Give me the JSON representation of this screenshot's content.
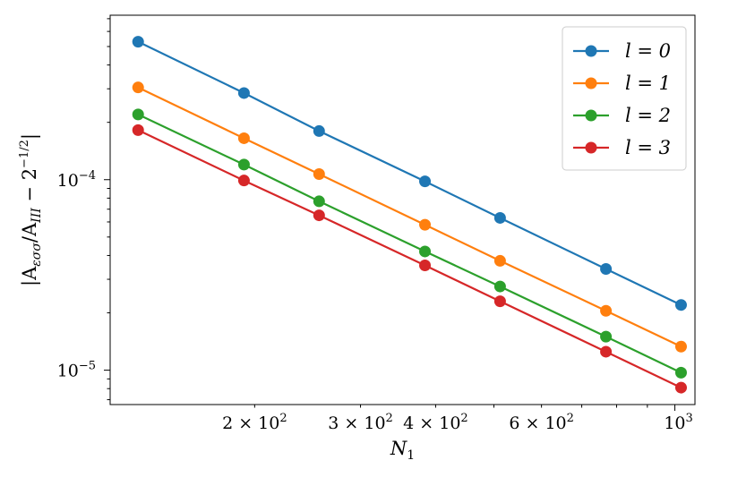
{
  "chart_data": {
    "type": "line",
    "xscale": "log",
    "yscale": "log",
    "xlabel": "N_1",
    "ylabel": "|A_{εσσ}/A_{III} − 2^{−1/2}|",
    "xlim": [
      115,
      1080
    ],
    "ylim": [
      6.6e-06,
      0.00073
    ],
    "x": [
      128,
      192,
      256,
      384,
      512,
      768,
      1024
    ],
    "series": [
      {
        "name": "l = 0",
        "color": "#1f77b4",
        "values": [
          0.00053,
          0.000285,
          0.00018,
          9.8e-05,
          6.3e-05,
          3.4e-05,
          2.2e-05
        ]
      },
      {
        "name": "l = 1",
        "color": "#ff7f0e",
        "values": [
          0.000305,
          0.000165,
          0.000107,
          5.8e-05,
          3.75e-05,
          2.05e-05,
          1.33e-05
        ]
      },
      {
        "name": "l = 2",
        "color": "#2ca02c",
        "values": [
          0.00022,
          0.00012,
          7.7e-05,
          4.2e-05,
          2.75e-05,
          1.5e-05,
          9.7e-06
        ]
      },
      {
        "name": "l = 3",
        "color": "#d62728",
        "values": [
          0.000182,
          9.9e-05,
          6.5e-05,
          3.55e-05,
          2.3e-05,
          1.25e-05,
          8.1e-06
        ]
      }
    ],
    "xticks_major": [
      {
        "value": 1000,
        "base": "10",
        "exp": "3"
      }
    ],
    "xticks_minor": [
      {
        "value": 200,
        "mant": "2",
        "base": "10",
        "exp": "2"
      },
      {
        "value": 300,
        "mant": "3",
        "base": "10",
        "exp": "2"
      },
      {
        "value": 400,
        "mant": "4",
        "base": "10",
        "exp": "2"
      },
      {
        "value": 600,
        "mant": "6",
        "base": "10",
        "exp": "2"
      }
    ],
    "yticks_major": [
      {
        "value": 1e-05,
        "base": "10",
        "exp": "−5"
      },
      {
        "value": 0.0001,
        "base": "10",
        "exp": "−4"
      }
    ],
    "legend_loc": "top-right"
  }
}
